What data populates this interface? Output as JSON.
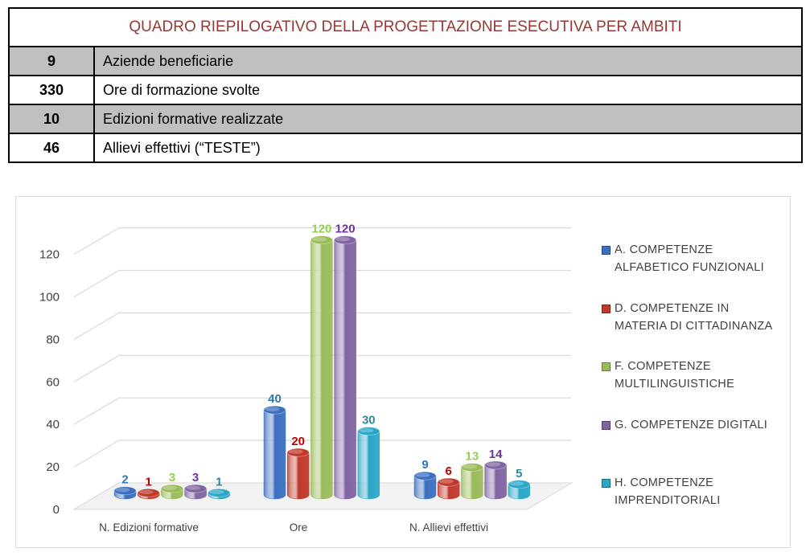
{
  "summary": {
    "title": "QUADRO RIEPILOGATIVO DELLA PROGETTAZIONE ESECUTIVA PER AMBITI",
    "rows": [
      {
        "value": "9",
        "label": "Aziende beneficiarie"
      },
      {
        "value": "330",
        "label": "Ore di formazione svolte"
      },
      {
        "value": "10",
        "label": "Edizioni formative realizzate"
      },
      {
        "value": "46",
        "label": "Allievi effettivi (“TESTE”)"
      }
    ]
  },
  "chart_data": {
    "type": "bar",
    "style": "3d-cylinder",
    "categories": [
      "N. Edizioni formative",
      "Ore",
      "N. Allievi effettivi"
    ],
    "series": [
      {
        "name": "A. COMPETENZE ALFABETICO FUNZIONALI",
        "values": [
          2,
          40,
          9
        ],
        "color": "#3c6fc0"
      },
      {
        "name": "D. COMPETENZE IN MATERIA DI CITTADINANZA",
        "values": [
          1,
          20,
          6
        ],
        "color": "#c0392b"
      },
      {
        "name": "F. COMPETENZE MULTILINGUISTICHE",
        "values": [
          3,
          120,
          13
        ],
        "color": "#9bbb59"
      },
      {
        "name": "G. COMPETENZE DIGITALI",
        "values": [
          3,
          120,
          14
        ],
        "color": "#8064a2"
      },
      {
        "name": "H. COMPETENZE IMPRENDITORIALI",
        "values": [
          1,
          30,
          5
        ],
        "color": "#2aa7c7"
      }
    ],
    "label_colors": [
      "#2e75b6",
      "#c00000",
      "#92d050",
      "#7030a0",
      "#31869b"
    ],
    "yticks": [
      "0",
      "20",
      "40",
      "60",
      "80",
      "100",
      "120"
    ],
    "ylim": [
      0,
      120
    ],
    "grid": true,
    "legend_position": "right",
    "data_labels": true
  }
}
